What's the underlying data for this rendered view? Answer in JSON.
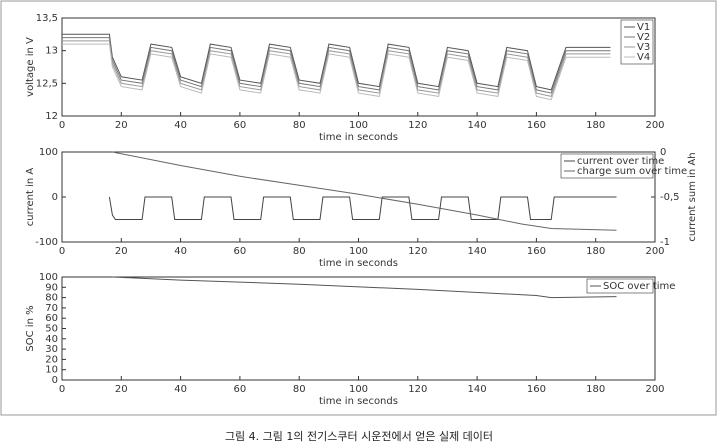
{
  "caption": "그림 4. 그림 1의 전기스쿠터 시운전에서 얻은 실제 데이터",
  "chart_data": [
    {
      "type": "line",
      "xlabel": "time in seconds",
      "ylabel": "voltage in V",
      "xlim": [
        0,
        200
      ],
      "xticks": [
        0,
        20,
        40,
        60,
        80,
        100,
        120,
        140,
        160,
        180,
        200
      ],
      "ylim": [
        12,
        13.5
      ],
      "yticks": [
        12,
        {
          "value": 12.5,
          "label": "12,5"
        },
        13,
        {
          "value": 13.5,
          "label": "13,5"
        }
      ],
      "legend": "upper right",
      "series": [
        {
          "name": "V1",
          "color": "#555555",
          "x": [
            0,
            16,
            17,
            20,
            27,
            30,
            37,
            40,
            47,
            50,
            57,
            60,
            67,
            70,
            77,
            80,
            87,
            90,
            97,
            100,
            107,
            110,
            117,
            120,
            127,
            130,
            137,
            140,
            147,
            150,
            157,
            160,
            165,
            170,
            185
          ],
          "values": [
            13.25,
            13.25,
            12.9,
            12.6,
            12.55,
            13.1,
            13.05,
            12.6,
            12.5,
            13.1,
            13.05,
            12.55,
            12.5,
            13.1,
            13.05,
            12.55,
            12.5,
            13.1,
            13.05,
            12.5,
            12.45,
            13.1,
            13.05,
            12.5,
            12.45,
            13.05,
            13.0,
            12.5,
            12.45,
            13.05,
            13.0,
            12.45,
            12.4,
            13.05,
            13.05
          ]
        },
        {
          "name": "V2",
          "color": "#777777",
          "x": [
            0,
            16,
            17,
            20,
            27,
            30,
            37,
            40,
            47,
            50,
            57,
            60,
            67,
            70,
            77,
            80,
            87,
            90,
            97,
            100,
            107,
            110,
            117,
            120,
            127,
            130,
            137,
            140,
            147,
            150,
            157,
            160,
            165,
            170,
            185
          ],
          "values": [
            13.2,
            13.2,
            12.85,
            12.55,
            12.5,
            13.05,
            13.0,
            12.55,
            12.45,
            13.05,
            13.0,
            12.5,
            12.45,
            13.05,
            13.0,
            12.5,
            12.45,
            13.05,
            13.0,
            12.45,
            12.4,
            13.05,
            13.0,
            12.45,
            12.4,
            13.0,
            12.95,
            12.45,
            12.4,
            13.0,
            12.95,
            12.4,
            12.35,
            13.0,
            13.0
          ]
        },
        {
          "name": "V3",
          "color": "#999999",
          "x": [
            0,
            16,
            17,
            20,
            27,
            30,
            37,
            40,
            47,
            50,
            57,
            60,
            67,
            70,
            77,
            80,
            87,
            90,
            97,
            100,
            107,
            110,
            117,
            120,
            127,
            130,
            137,
            140,
            147,
            150,
            157,
            160,
            165,
            170,
            185
          ],
          "values": [
            13.15,
            13.15,
            12.8,
            12.5,
            12.45,
            13.0,
            12.95,
            12.5,
            12.4,
            13.0,
            12.95,
            12.45,
            12.4,
            13.0,
            12.95,
            12.45,
            12.4,
            13.0,
            12.95,
            12.4,
            12.35,
            13.0,
            12.95,
            12.4,
            12.35,
            12.95,
            12.9,
            12.4,
            12.35,
            12.95,
            12.9,
            12.35,
            12.3,
            12.95,
            12.95
          ]
        },
        {
          "name": "V4",
          "color": "#bbbbbb",
          "x": [
            0,
            16,
            17,
            20,
            27,
            30,
            37,
            40,
            47,
            50,
            57,
            60,
            67,
            70,
            77,
            80,
            87,
            90,
            97,
            100,
            107,
            110,
            117,
            120,
            127,
            130,
            137,
            140,
            147,
            150,
            157,
            160,
            165,
            170,
            185
          ],
          "values": [
            13.1,
            13.1,
            12.75,
            12.45,
            12.4,
            12.95,
            12.9,
            12.45,
            12.35,
            12.95,
            12.9,
            12.4,
            12.35,
            12.95,
            12.9,
            12.4,
            12.35,
            12.95,
            12.9,
            12.35,
            12.3,
            12.95,
            12.9,
            12.35,
            12.3,
            12.9,
            12.85,
            12.35,
            12.3,
            12.9,
            12.85,
            12.3,
            12.25,
            12.9,
            12.9
          ]
        }
      ]
    },
    {
      "type": "line",
      "xlabel": "time in seconds",
      "ylabel": "current in A",
      "y2label": "current sum in Ah",
      "xlim": [
        0,
        200
      ],
      "xticks": [
        0,
        20,
        40,
        60,
        80,
        100,
        120,
        140,
        160,
        180,
        200
      ],
      "ylim": [
        -100,
        100
      ],
      "yticks": [
        -100,
        0,
        100
      ],
      "y2lim": [
        -1,
        0
      ],
      "y2ticks": [
        -1,
        {
          "value": -0.5,
          "label": "-0,5"
        },
        0
      ],
      "legend": "upper right",
      "series": [
        {
          "name": "current over time",
          "color": "#444444",
          "x": [
            16,
            17,
            18,
            27,
            28,
            37,
            38,
            47,
            48,
            57,
            58,
            67,
            68,
            77,
            78,
            87,
            88,
            97,
            98,
            107,
            108,
            117,
            118,
            127,
            128,
            137,
            138,
            147,
            148,
            157,
            158,
            165,
            166,
            170,
            187
          ],
          "values": [
            0,
            -40,
            -50,
            -50,
            0,
            0,
            -50,
            -50,
            0,
            0,
            -50,
            -50,
            0,
            0,
            -50,
            -50,
            0,
            0,
            -50,
            -50,
            0,
            0,
            -50,
            -50,
            0,
            0,
            -50,
            -50,
            0,
            0,
            -50,
            -50,
            0,
            0,
            0
          ]
        },
        {
          "name": "charge sum over time",
          "color": "#666666",
          "axis": "y2",
          "x": [
            17,
            40,
            60,
            80,
            100,
            120,
            140,
            155,
            165,
            187
          ],
          "values": [
            0,
            -0.15,
            -0.27,
            -0.37,
            -0.47,
            -0.58,
            -0.7,
            -0.8,
            -0.85,
            -0.87
          ]
        }
      ]
    },
    {
      "type": "line",
      "xlabel": "time in seconds",
      "ylabel": "SOC in %",
      "xlim": [
        0,
        200
      ],
      "xticks": [
        0,
        20,
        40,
        60,
        80,
        100,
        120,
        140,
        160,
        180,
        200
      ],
      "ylim": [
        0,
        100
      ],
      "yticks": [
        0,
        10,
        20,
        30,
        40,
        50,
        60,
        70,
        80,
        90,
        100
      ],
      "legend": "upper right",
      "series": [
        {
          "name": "SOC over time",
          "color": "#555555",
          "x": [
            17,
            40,
            80,
            120,
            160,
            165,
            187
          ],
          "values": [
            100,
            97,
            93,
            88,
            82,
            80,
            81
          ]
        }
      ]
    }
  ]
}
